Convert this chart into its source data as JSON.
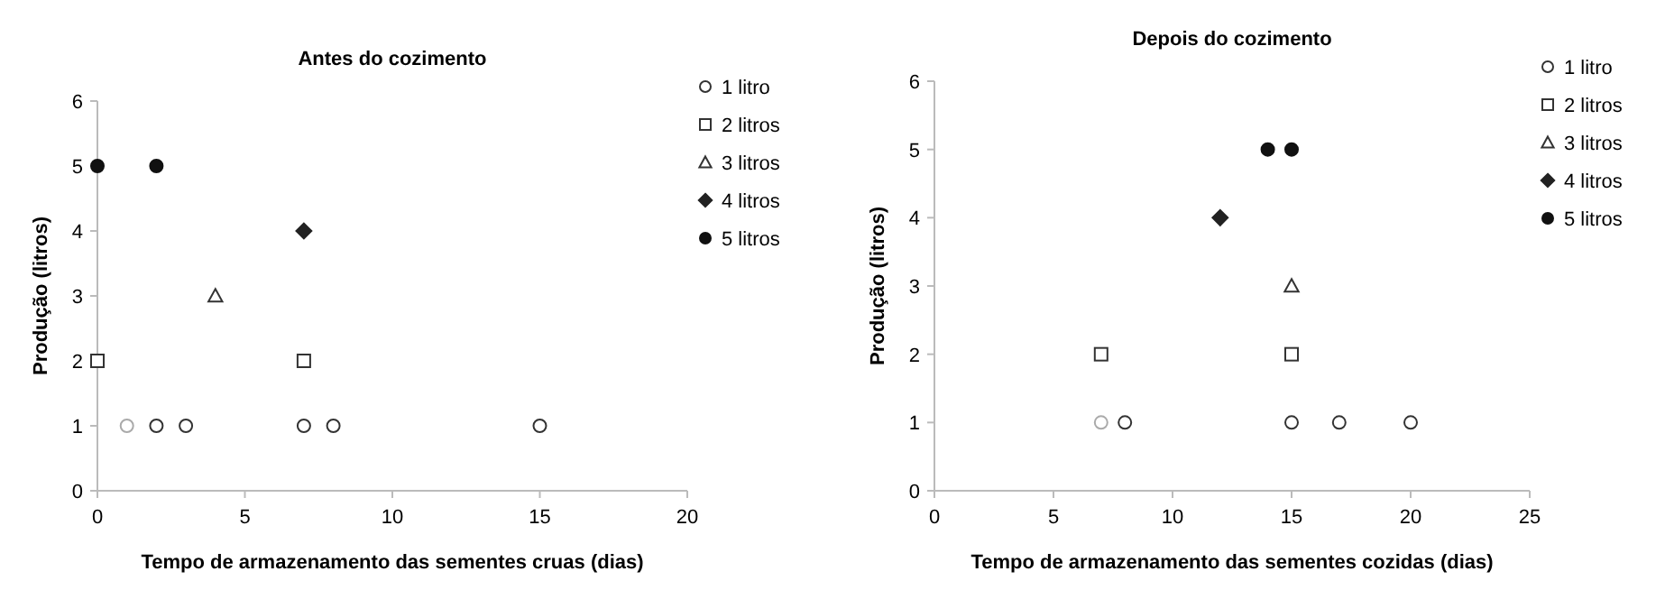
{
  "chart_data": [
    {
      "type": "scatter",
      "title": "Antes do cozimento",
      "xlabel": "Tempo de armazenamento das sementes cruas (dias)",
      "ylabel": "Produção (litros)",
      "xlim": [
        0,
        20
      ],
      "xticks": [
        0,
        5,
        10,
        15,
        20
      ],
      "ylim": [
        0,
        6
      ],
      "yticks": [
        0,
        1,
        2,
        3,
        4,
        5,
        6
      ],
      "grid": false,
      "legend": "top right",
      "series": [
        {
          "name": "1 litro",
          "color": "#333333",
          "marker": "circle",
          "x": [
            1,
            2,
            3,
            7,
            8,
            15
          ],
          "values": [
            1,
            1,
            1,
            1,
            1,
            1
          ],
          "colors": [
            "#aaaaaa",
            "#333333",
            "#333333",
            "#333333",
            "#333333",
            "#333333"
          ]
        },
        {
          "name": "2 litros",
          "color": "#333333",
          "marker": "square",
          "x": [
            0,
            7
          ],
          "values": [
            2,
            2
          ]
        },
        {
          "name": "3 litros",
          "color": "#333333",
          "marker": "triangle",
          "x": [
            4
          ],
          "values": [
            3
          ]
        },
        {
          "name": "4 litros",
          "color": "#222222",
          "marker": "diamond",
          "x": [
            7
          ],
          "values": [
            4
          ]
        },
        {
          "name": "5 litros",
          "color": "#111111",
          "marker": "circle",
          "x": [
            0,
            2
          ],
          "values": [
            5,
            5
          ]
        }
      ]
    },
    {
      "type": "scatter",
      "title": "Depois do cozimento",
      "xlabel": "Tempo de armazenamento das sementes cozidas (dias)",
      "ylabel": "Produção (litros)",
      "xlim": [
        0,
        25
      ],
      "xticks": [
        0,
        5,
        10,
        15,
        20,
        25
      ],
      "ylim": [
        0,
        6
      ],
      "yticks": [
        0,
        1,
        2,
        3,
        4,
        5,
        6
      ],
      "grid": false,
      "legend": "top right",
      "series": [
        {
          "name": "1 litro",
          "color": "#333333",
          "marker": "circle",
          "x": [
            7,
            8,
            15,
            17,
            20
          ],
          "values": [
            1,
            1,
            1,
            1,
            1
          ],
          "colors": [
            "#aaaaaa",
            "#333333",
            "#333333",
            "#333333",
            "#333333"
          ]
        },
        {
          "name": "2 litros",
          "color": "#333333",
          "marker": "square",
          "x": [
            7,
            15
          ],
          "values": [
            2,
            2
          ]
        },
        {
          "name": "3 litros",
          "color": "#333333",
          "marker": "triangle",
          "x": [
            15
          ],
          "values": [
            3
          ]
        },
        {
          "name": "4 litros",
          "color": "#222222",
          "marker": "diamond",
          "x": [
            12
          ],
          "values": [
            4
          ]
        },
        {
          "name": "5 litros",
          "color": "#111111",
          "marker": "circle",
          "x": [
            14,
            15
          ],
          "values": [
            5,
            5
          ]
        }
      ]
    }
  ]
}
